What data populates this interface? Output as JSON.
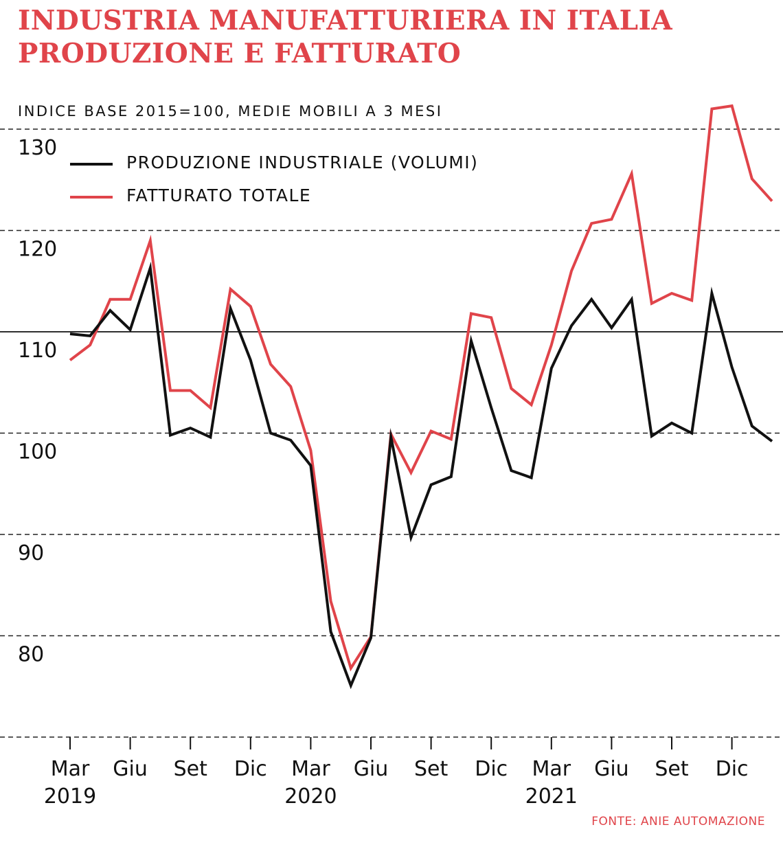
{
  "header": {
    "title_line1": "INDUSTRIA MANUFATTURIERA IN ITALIA",
    "title_line2": "PRODUZIONE E FATTURATO",
    "subtitle": "INDICE BASE 2015=100, MEDIE MOBILI A 3 MESI"
  },
  "source": "FONTE: ANIE AUTOMAZIONE",
  "colors": {
    "title": "#e0444a",
    "production": "#111111",
    "turnover": "#e0444a"
  },
  "chart_data": {
    "type": "line",
    "ylim": [
      70,
      130
    ],
    "yticks": [
      80,
      90,
      100,
      110,
      120,
      130
    ],
    "reference_line": 110,
    "grid": "dashed-horizontal",
    "legend_position": "top-left",
    "x": [
      "Mar 2019",
      "Apr 2019",
      "Mag 2019",
      "Giu 2019",
      "Lug 2019",
      "Ago 2019",
      "Set 2019",
      "Ott 2019",
      "Nov 2019",
      "Dic 2019",
      "Gen 2020",
      "Feb 2020",
      "Mar 2020",
      "Apr 2020",
      "Mag 2020",
      "Giu 2020",
      "Lug 2020",
      "Ago 2020",
      "Set 2020",
      "Ott 2020",
      "Nov 2020",
      "Dic 2020",
      "Gen 2021",
      "Feb 2021",
      "Mar 2021",
      "Apr 2021",
      "Mag 2021",
      "Giu 2021",
      "Lug 2021",
      "Ago 2021",
      "Set 2021",
      "Ott 2021",
      "Nov 2021",
      "Dic 2021",
      "Gen 2022",
      "Feb 2022"
    ],
    "xtick_labels": [
      {
        "month": "Mar",
        "year": "2019"
      },
      {
        "month": "Giu",
        "year": ""
      },
      {
        "month": "Set",
        "year": ""
      },
      {
        "month": "Dic",
        "year": ""
      },
      {
        "month": "Mar",
        "year": "2020"
      },
      {
        "month": "Giu",
        "year": ""
      },
      {
        "month": "Set",
        "year": ""
      },
      {
        "month": "Dic",
        "year": ""
      },
      {
        "month": "Mar",
        "year": "2021"
      },
      {
        "month": "Giu",
        "year": ""
      },
      {
        "month": "Set",
        "year": ""
      },
      {
        "month": "Dic",
        "year": ""
      }
    ],
    "series": [
      {
        "name": "PRODUZIONE INDUSTRIALE (VOLUMI)",
        "values": [
          109.8,
          109.6,
          112.1,
          110.2,
          116.3,
          99.8,
          100.5,
          99.6,
          112.3,
          107.2,
          100.0,
          99.3,
          96.8,
          80.4,
          75.1,
          79.8,
          99.6,
          89.7,
          94.9,
          95.7,
          109.1,
          102.5,
          96.3,
          95.6,
          106.4,
          110.6,
          113.2,
          110.4,
          113.2,
          99.7,
          101.0,
          100.0,
          113.8,
          106.5,
          100.7,
          99.2
        ]
      },
      {
        "name": "FATTURATO TOTALE",
        "values": [
          107.2,
          108.7,
          113.2,
          113.2,
          119.0,
          104.2,
          104.2,
          102.5,
          114.2,
          112.5,
          106.8,
          104.6,
          98.3,
          83.4,
          76.8,
          79.9,
          99.9,
          96.1,
          100.2,
          99.4,
          111.8,
          111.4,
          104.4,
          102.8,
          108.7,
          116.0,
          120.7,
          121.1,
          125.6,
          112.8,
          113.8,
          113.1,
          132.0,
          132.3,
          125.1,
          122.9
        ]
      }
    ]
  }
}
